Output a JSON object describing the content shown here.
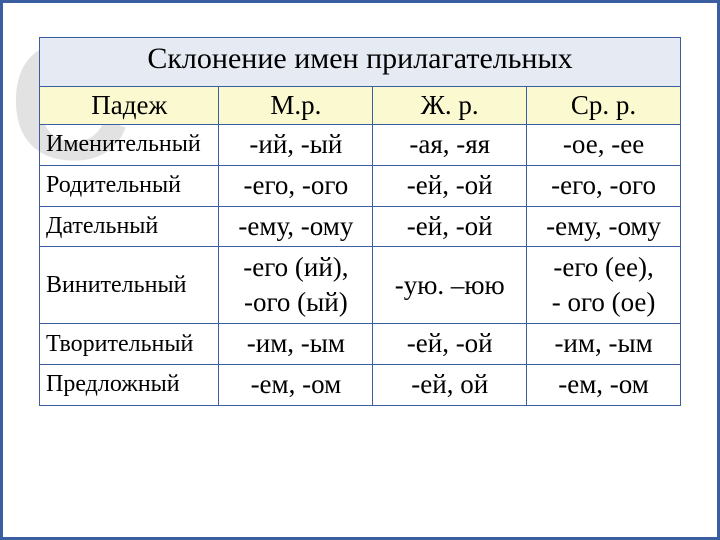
{
  "watermark": "С",
  "table": {
    "title": "Склонение имен прилагательных",
    "headers": {
      "case": "Падеж",
      "m": "М.р.",
      "f": "Ж. р.",
      "n": "Ср. р."
    },
    "rows": [
      {
        "case": "Именительный",
        "m": "-ий, -ый",
        "f": "-ая, -яя",
        "n": "-ое, -ее"
      },
      {
        "case": "Родительный",
        "m": "-его, -ого",
        "f": "-ей, -ой",
        "n": "-его, -ого"
      },
      {
        "case": "Дательный",
        "m": "-ему, -ому",
        "f": "-ей, -ой",
        "n": "-ему, -ому"
      },
      {
        "case": "Винительный",
        "m": "-его (ий),\n-ого (ый)",
        "f": "-ую. –юю",
        "n": "-его (ее),\n- ого (ое)"
      },
      {
        "case": "Творительный",
        "m": "-им, -ым",
        "f": "-ей, -ой",
        "n": "-им, -ым"
      },
      {
        "case": "Предложный",
        "m": "-ем, -ом",
        "f": "-ей, ой",
        "n": "-ем, -ом"
      }
    ]
  },
  "colors": {
    "border": "#3a5ea0",
    "title_bg": "#e6eaf3",
    "header_bg": "#fbf9cf",
    "watermark": "#e2e2e2",
    "text": "#000000",
    "page_bg": "#ffffff"
  }
}
